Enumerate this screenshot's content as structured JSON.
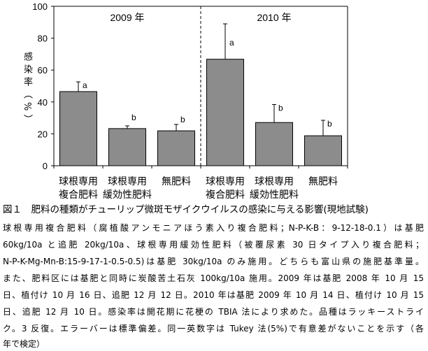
{
  "chart_data": {
    "type": "bar",
    "title": "",
    "ylabel": "感染率（%）",
    "ylabel_chars": [
      "感",
      "染",
      "率",
      "（",
      "%",
      "）"
    ],
    "ylim": [
      0,
      100
    ],
    "yticks": [
      0,
      20,
      40,
      60,
      80,
      100
    ],
    "groups": [
      {
        "label": "2009 年"
      },
      {
        "label": "2010 年"
      }
    ],
    "categories": [
      [
        "球根専用",
        "複合肥料"
      ],
      [
        "球根専用",
        "緩効性肥料"
      ],
      [
        "無肥料"
      ],
      [
        "球根専用",
        "複合肥料"
      ],
      [
        "球根専用",
        "緩効性肥料"
      ],
      [
        "無肥料"
      ]
    ],
    "values": [
      46.5,
      23.3,
      21.9,
      66.8,
      27.1,
      18.8
    ],
    "error_upper": [
      52.6,
      25.0,
      25.9,
      89.0,
      38.4,
      28.5
    ],
    "significance": [
      "a",
      "b",
      "b",
      "a",
      "b",
      "b"
    ],
    "bar_color": "#8c8c8c",
    "grid": false
  },
  "caption": {
    "title": "図１　肥料の種類がチューリップ微斑モザイクウイルスの感染に与える影響(現地試験)",
    "lines": [
      "球根専用複合肥料（腐植酸アンモニアほう素入り複合肥料；N-P-K-B：9-12-18-0.1）は基肥",
      "60kg/10a と追肥 20kg/10a、球根専用緩効性肥料（被覆尿素 30 日タイプ入り複合肥料；",
      "N-P-K-Mg-Mn-B:15-9-17-1-0.5-0.5)は基肥 30kg/10a のみ施用。どちらも富山県の施肥基準量。",
      "また、肥料区には基肥と同時に炭酸苦土石灰 100kg/10a 施用。2009 年は基肥 2008 年 10 月 15",
      "日、植付け 10 月 16 日、追肥 12 月 12 日。2010 年は基肥 2009 年 10 月 14 日、植付け 10 月 15",
      "日、追肥 12 月 10 日。感染率は開花期に花梗の TBIA 法により求めた。品種はラッキーストライ",
      "ク。3 反復。エラーバーは標準偏差。同一英数字は Tukey 法(5%)で有意差がないことを示す（各",
      "年で検定）"
    ]
  }
}
